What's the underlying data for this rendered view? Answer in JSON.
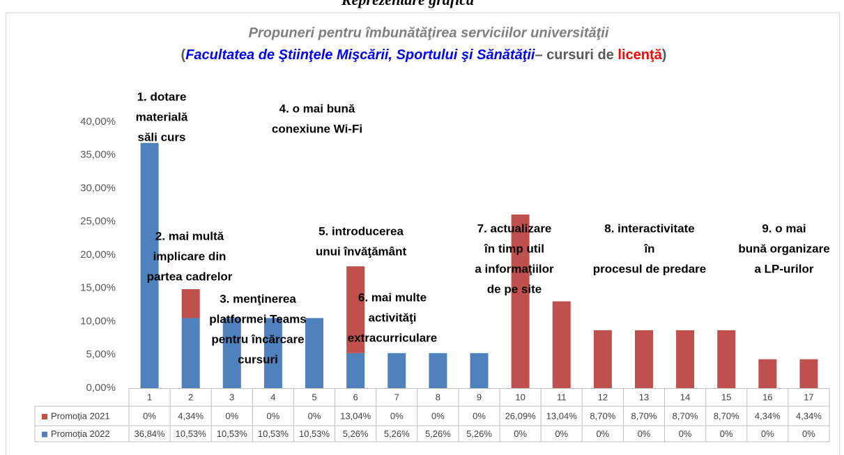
{
  "header": "Reprezentare grafică",
  "chart_data": {
    "type": "bar",
    "stacked": true,
    "title": "Propuneri pentru îmbunătăţirea  serviciilor universităţii",
    "subtitle": [
      {
        "text": "(",
        "color": "#595959"
      },
      {
        "text": "Facultatea de Ştiinţele Mişcării, Sportului şi Sănătăţii",
        "color": "#0000ff"
      },
      {
        "text": "– cursuri de ",
        "color": "#595959"
      },
      {
        "text": "licenţă",
        "color": "#ff0000"
      },
      {
        "text": ")",
        "color": "#595959"
      }
    ],
    "categories": [
      "1",
      "2",
      "3",
      "4",
      "5",
      "6",
      "7",
      "8",
      "9",
      "10",
      "11",
      "12",
      "13",
      "14",
      "15",
      "16",
      "17"
    ],
    "series": [
      {
        "name": "Promoția 2022",
        "color": "#4f81bd",
        "values": [
          36.84,
          10.53,
          10.53,
          10.53,
          10.53,
          5.26,
          5.26,
          5.26,
          5.26,
          0,
          0,
          0,
          0,
          0,
          0,
          0,
          0
        ],
        "value_labels": [
          "36,84%",
          "10,53%",
          "10,53%",
          "10,53%",
          "10,53%",
          "5,26%",
          "5,26%",
          "5,26%",
          "5,26%",
          "0%",
          "0%",
          "0%",
          "0%",
          "0%",
          "0%",
          "0%",
          "0%"
        ]
      },
      {
        "name": "Promoția 2021",
        "color": "#c0504d",
        "values": [
          0,
          4.34,
          0,
          0,
          0,
          13.04,
          0,
          0,
          0,
          26.09,
          13.04,
          8.7,
          8.7,
          8.7,
          8.7,
          4.34,
          4.34
        ],
        "value_labels": [
          "0%",
          "4,34%",
          "0%",
          "0%",
          "0%",
          "13,04%",
          "0%",
          "0%",
          "0%",
          "26,09%",
          "13,04%",
          "8,70%",
          "8,70%",
          "8,70%",
          "8,70%",
          "4,34%",
          "4,34%"
        ]
      }
    ],
    "ylim": [
      0,
      40
    ],
    "yticks": [
      {
        "value": 0,
        "label": "0,00%"
      },
      {
        "value": 5,
        "label": "5,00%"
      },
      {
        "value": 10,
        "label": "10,00%"
      },
      {
        "value": 15,
        "label": "15,00%"
      },
      {
        "value": 20,
        "label": "20,00%"
      },
      {
        "value": 25,
        "label": "25,00%"
      },
      {
        "value": 30,
        "label": "30,00%"
      },
      {
        "value": 35,
        "label": "35,00%"
      },
      {
        "value": 40,
        "label": "40,00%"
      }
    ],
    "annotations": [
      {
        "lines": [
          "1. dotare",
          "materială",
          "săli curs"
        ]
      },
      {
        "lines": [
          "2. mai multă",
          "implicare din",
          "partea cadrelor"
        ]
      },
      {
        "lines": [
          "3. menţinerea",
          "platformei Teams",
          "pentru încărcare",
          "cursuri"
        ]
      },
      {
        "lines": [
          "4. o mai bună",
          "conexiune Wi-Fi"
        ]
      },
      {
        "lines": [
          "5. introducerea",
          "unui învăţământ"
        ]
      },
      {
        "lines": [
          "6. mai multe",
          "activităţi",
          "extracurriculare"
        ]
      },
      {
        "lines": [
          "7. actualizare",
          "în timp util",
          "a informaţiilor",
          "de pe site"
        ]
      },
      {
        "lines": [
          "8. interactivitate",
          "în",
          "procesul de predare"
        ]
      },
      {
        "lines": [
          "9. o mai",
          "bună organizare",
          "a LP-urilor"
        ]
      }
    ]
  }
}
